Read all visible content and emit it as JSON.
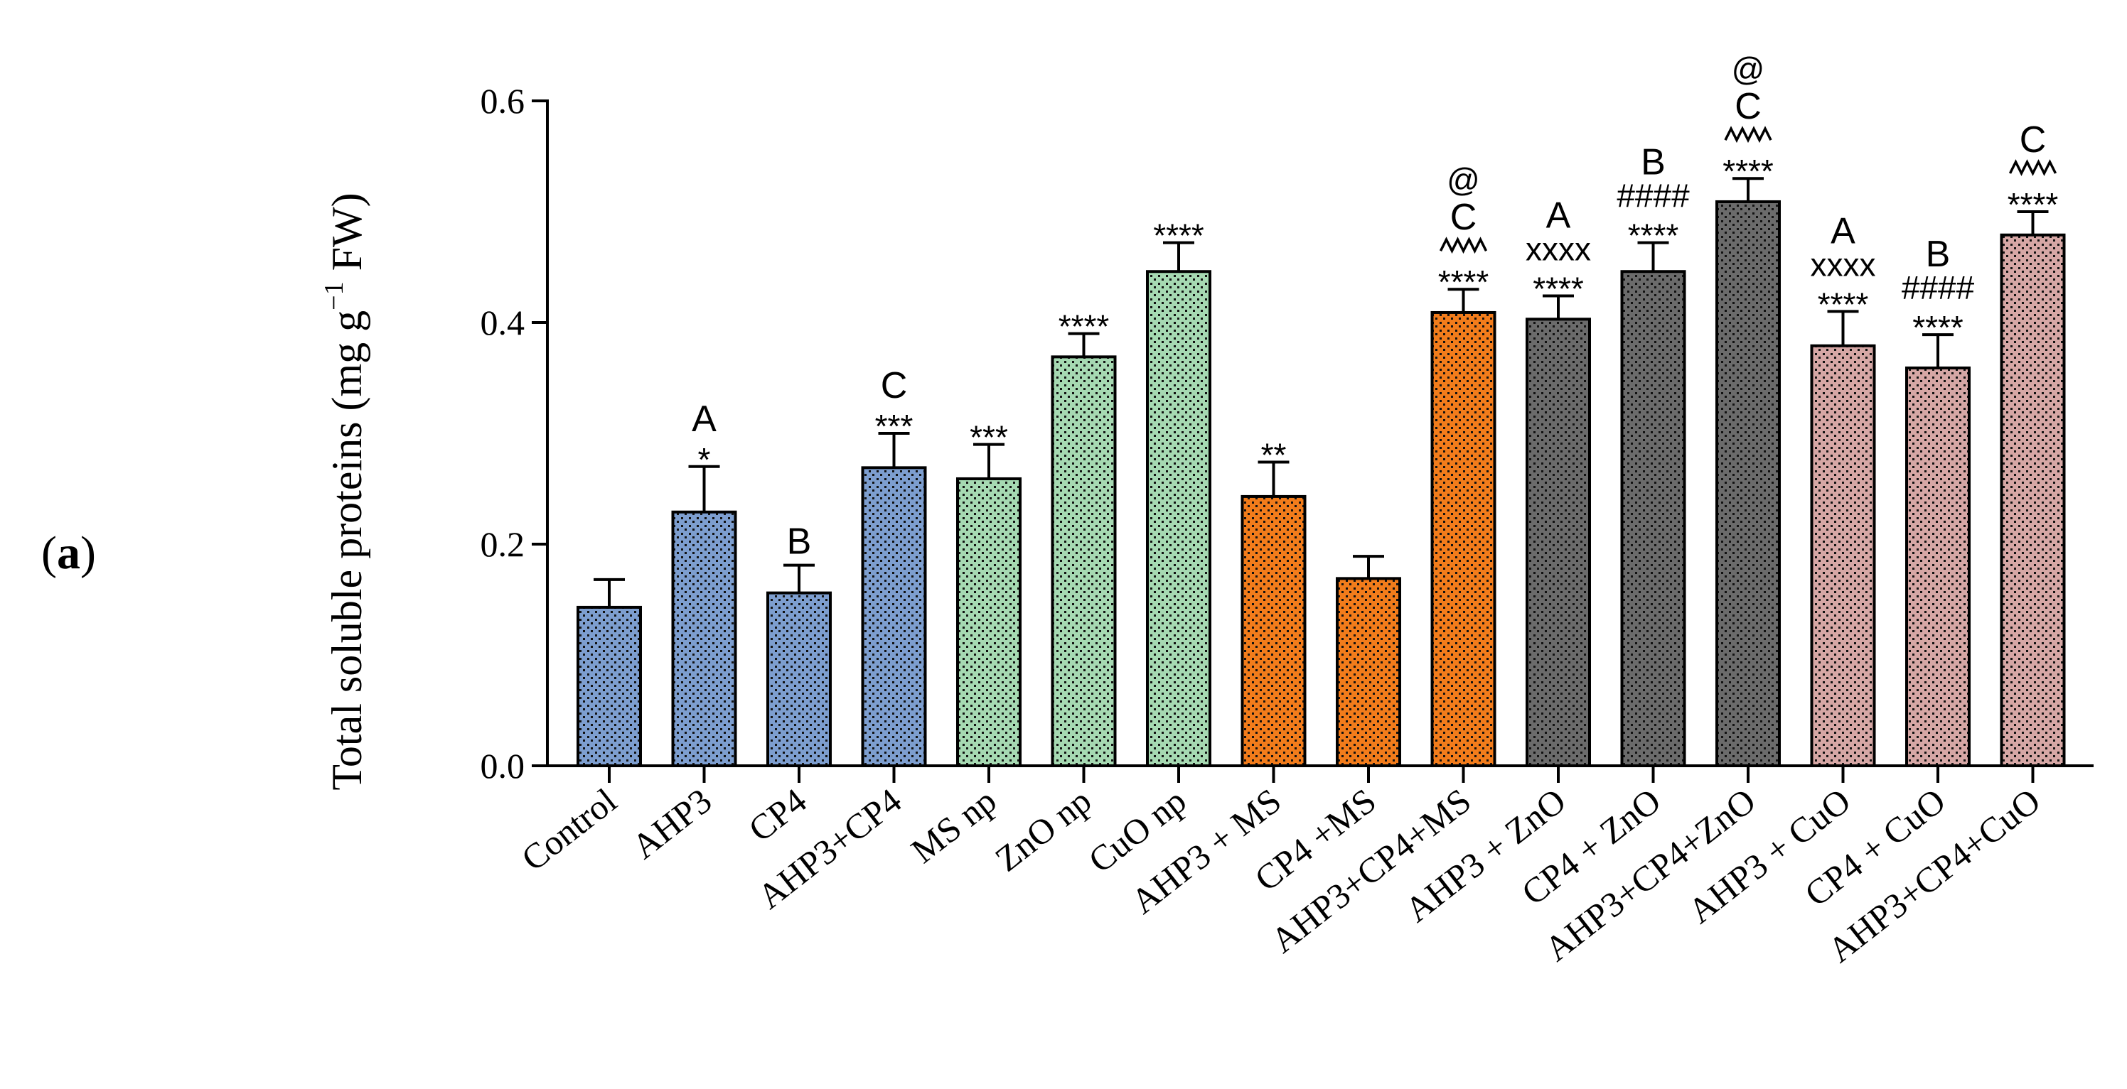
{
  "panel_label": {
    "open": "(",
    "letter": "a",
    "close": ")"
  },
  "chart_data": {
    "type": "bar",
    "title": "",
    "xlabel": "",
    "ylabel": "Total soluble proteins (mg g",
    "ylabel_sup": "−1",
    "ylabel_tail": " FW)",
    "ylim": [
      0.0,
      0.6
    ],
    "yticks": [
      0.0,
      0.2,
      0.4,
      0.6
    ],
    "ytick_labels": [
      "0.0",
      "0.2",
      "0.4",
      "0.6"
    ],
    "grid": false,
    "categories": [
      "Control",
      "AHP3",
      "CP4",
      "AHP3+CP4",
      "MS np",
      "ZnO np",
      "CuO np",
      "AHP3 + MS",
      "CP4 +MS",
      "AHP3+CP4+MS",
      "AHP3 + ZnO",
      "CP4 + ZnO",
      "AHP3+CP4+ZnO",
      "AHP3 + CuO",
      "CP4 + CuO",
      "AHP3+CP4+CuO"
    ],
    "values": [
      0.143,
      0.229,
      0.156,
      0.269,
      0.259,
      0.369,
      0.446,
      0.243,
      0.169,
      0.409,
      0.403,
      0.446,
      0.509,
      0.379,
      0.359,
      0.479
    ],
    "errors": [
      0.025,
      0.041,
      0.025,
      0.031,
      0.031,
      0.021,
      0.026,
      0.031,
      0.02,
      0.021,
      0.021,
      0.026,
      0.021,
      0.031,
      0.03,
      0.021
    ],
    "colors": [
      "#7d9ecf",
      "#7d9ecf",
      "#7d9ecf",
      "#7d9ecf",
      "#a6d9b2",
      "#a6d9b2",
      "#a6d9b2",
      "#f27c1b",
      "#f27c1b",
      "#f27c1b",
      "#6b6b6b",
      "#6b6b6b",
      "#6b6b6b",
      "#d6a7a5",
      "#d6a7a5",
      "#d6a7a5"
    ],
    "annotations": [
      [],
      [
        "*",
        "A"
      ],
      [
        "B"
      ],
      [
        "***",
        "C"
      ],
      [
        "***"
      ],
      [
        "****"
      ],
      [
        "****"
      ],
      [
        "**"
      ],
      [],
      [
        "****",
        "^^^",
        "C",
        "@"
      ],
      [
        "****",
        "xxxx",
        "A"
      ],
      [
        "****",
        "####",
        "B"
      ],
      [
        "****",
        "^^^",
        "C",
        "@"
      ],
      [
        "****",
        "xxxx",
        "A"
      ],
      [
        "****",
        "####",
        "B"
      ],
      [
        "****",
        "^^^",
        "C"
      ]
    ]
  }
}
